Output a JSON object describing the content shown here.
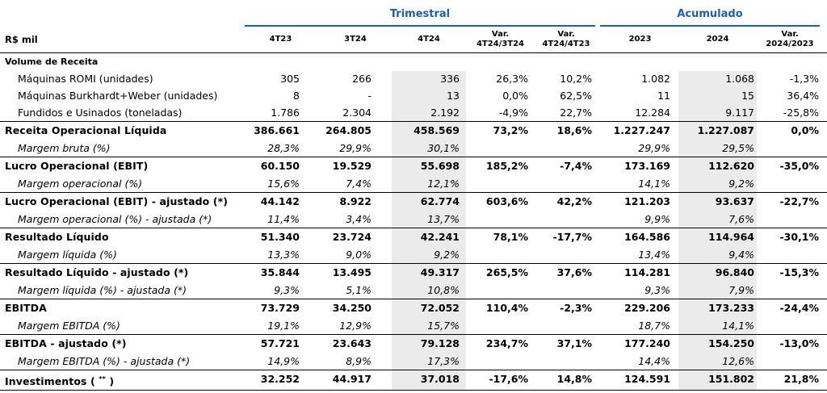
{
  "groups": {
    "trimestral": "Trimestral",
    "acumulado": "Acumulado"
  },
  "header": {
    "label": "R$ mil",
    "c1": "4T23",
    "c2": "3T24",
    "c3": "4T24",
    "c4_line1": "Var.",
    "c4_line2": "4T24/3T24",
    "c5_line1": "Var.",
    "c5_line2": "4T24/4T23",
    "c6": "2023",
    "c7": "2024",
    "c8_line1": "Var.",
    "c8_line2": "2024/2023"
  },
  "rows": [
    {
      "type": "section",
      "label": "Volume de Receita",
      "values": [
        "",
        "",
        "",
        "",
        "",
        "",
        "",
        ""
      ]
    },
    {
      "type": "item",
      "label": "Máquinas ROMI (unidades)",
      "values": [
        "305",
        "266",
        "336",
        "26,3%",
        "10,2%",
        "1.082",
        "1.068",
        "-1,3%"
      ]
    },
    {
      "type": "item",
      "label": "Máquinas Burkhardt+Weber (unidades)",
      "values": [
        "8",
        "-",
        "13",
        "0,0%",
        "62,5%",
        "11",
        "15",
        "36,4%"
      ]
    },
    {
      "type": "item",
      "label": "Fundidos e Usinados (toneladas)",
      "values": [
        "1.786",
        "2.304",
        "2.192",
        "-4,9%",
        "22,7%",
        "12.284",
        "9.117",
        "-25,8%"
      ]
    },
    {
      "type": "major",
      "label": "Receita Operacional Líquida",
      "values": [
        "386.661",
        "264.805",
        "458.569",
        "73,2%",
        "18,6%",
        "1.227.247",
        "1.227.087",
        "0,0%"
      ]
    },
    {
      "type": "sub",
      "label": "Margem bruta (%)",
      "values": [
        "28,3%",
        "29,9%",
        "30,1%",
        "",
        "",
        "29,9%",
        "29,5%",
        ""
      ]
    },
    {
      "type": "major",
      "label": "Lucro Operacional (EBIT)",
      "values": [
        "60.150",
        "19.529",
        "55.698",
        "185,2%",
        "-7,4%",
        "173.169",
        "112.620",
        "-35,0%"
      ]
    },
    {
      "type": "sub",
      "label": "Margem operacional  (%)",
      "values": [
        "15,6%",
        "7,4%",
        "12,1%",
        "",
        "",
        "14,1%",
        "9,2%",
        ""
      ]
    },
    {
      "type": "major",
      "label": "Lucro Operacional (EBIT) - ajustado (*)",
      "values": [
        "44.142",
        "8.922",
        "62.774",
        "603,6%",
        "42,2%",
        "121.203",
        "93.637",
        "-22,7%"
      ]
    },
    {
      "type": "sub",
      "label": "Margem operacional  (%) - ajustada (*)",
      "values": [
        "11,4%",
        "3,4%",
        "13,7%",
        "",
        "",
        "9,9%",
        "7,6%",
        ""
      ]
    },
    {
      "type": "major",
      "label": "Resultado Líquido",
      "values": [
        "51.340",
        "23.724",
        "42.241",
        "78,1%",
        "-17,7%",
        "164.586",
        "114.964",
        "-30,1%"
      ]
    },
    {
      "type": "sub",
      "label": "Margem líquida (%)",
      "values": [
        "13,3%",
        "9,0%",
        "9,2%",
        "",
        "",
        "13,4%",
        "9,4%",
        ""
      ]
    },
    {
      "type": "major",
      "label": "Resultado Líquido - ajustado (*)",
      "values": [
        "35.844",
        "13.495",
        "49.317",
        "265,5%",
        "37,6%",
        "114.281",
        "96.840",
        "-15,3%"
      ]
    },
    {
      "type": "sub",
      "label": "Margem líquida (%) - ajustada (*)",
      "values": [
        "9,3%",
        "5,1%",
        "10,8%",
        "",
        "",
        "9,3%",
        "7,9%",
        ""
      ]
    },
    {
      "type": "major",
      "label": "EBITDA",
      "values": [
        "73.729",
        "34.250",
        "72.052",
        "110,4%",
        "-2,3%",
        "229.206",
        "173.233",
        "-24,4%"
      ]
    },
    {
      "type": "sub",
      "label": "Margem EBITDA (%)",
      "values": [
        "19,1%",
        "12,9%",
        "15,7%",
        "",
        "",
        "18,7%",
        "14,1%",
        ""
      ]
    },
    {
      "type": "major",
      "label": "EBITDA - ajustado (*)",
      "values": [
        "57.721",
        "23.643",
        "79.128",
        "234,7%",
        "37,1%",
        "177.240",
        "154.250",
        "-13,0%"
      ]
    },
    {
      "type": "sub",
      "label": "Margem EBITDA (%) - ajustada (*)",
      "values": [
        "14,9%",
        "8,9%",
        "17,3%",
        "",
        "",
        "14,4%",
        "12,6%",
        ""
      ]
    },
    {
      "type": "major",
      "label": "Investimentos ( ",
      "label_sup": "**",
      "label_end": " )",
      "values": [
        "32.252",
        "44.917",
        "37.018",
        "-17,6%",
        "14,8%",
        "124.591",
        "151.802",
        "21,8%"
      ]
    }
  ]
}
